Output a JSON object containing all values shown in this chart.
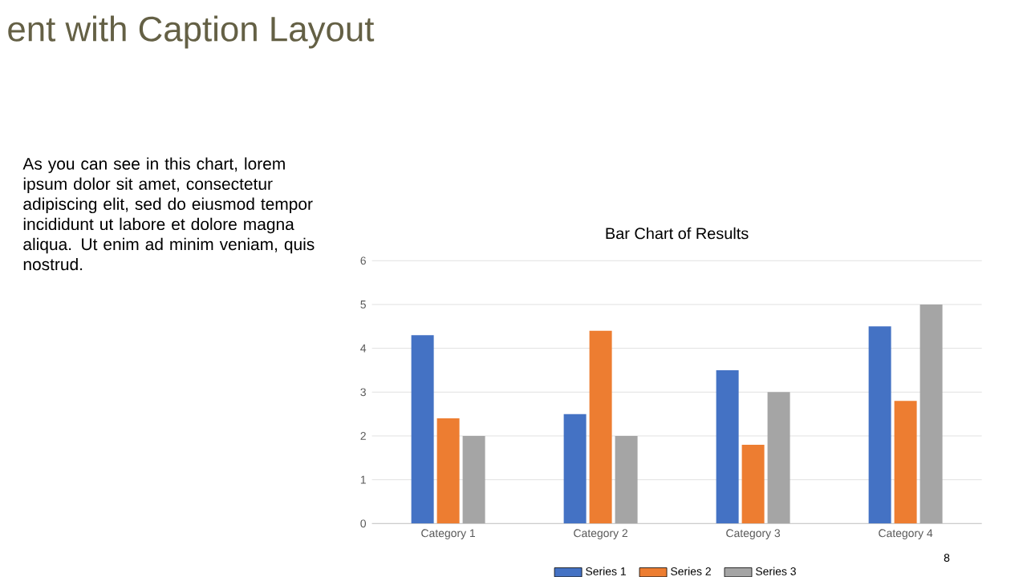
{
  "chart_data": {
    "type": "bar",
    "title": "Bar Chart of Results",
    "categories": [
      "Category 1",
      "Category 2",
      "Category 3",
      "Category 4"
    ],
    "series": [
      {
        "name": "Series 1",
        "color": "#4472c4",
        "values": [
          4.3,
          2.5,
          3.5,
          4.5
        ]
      },
      {
        "name": "Series 2",
        "color": "#ed7d31",
        "values": [
          2.4,
          4.4,
          1.8,
          2.8
        ]
      },
      {
        "name": "Series 3",
        "color": "#a5a5a5",
        "values": [
          2,
          2,
          3,
          5
        ]
      }
    ],
    "ylim": [
      0,
      6
    ],
    "yticks": [
      0,
      1,
      2,
      3,
      4,
      5,
      6
    ],
    "grid": "y",
    "legend": "bottom",
    "annotations": [
      "ent with Caption Layout",
      "As you can see in this chart, lorem ipsum dolor sit amet, consectetur adipiscing elit, sed do eiusmod tempor incididunt ut labore et dolore magna aliqua. Ut enim ad minim veniam, quis nostrud.",
      "8"
    ]
  }
}
